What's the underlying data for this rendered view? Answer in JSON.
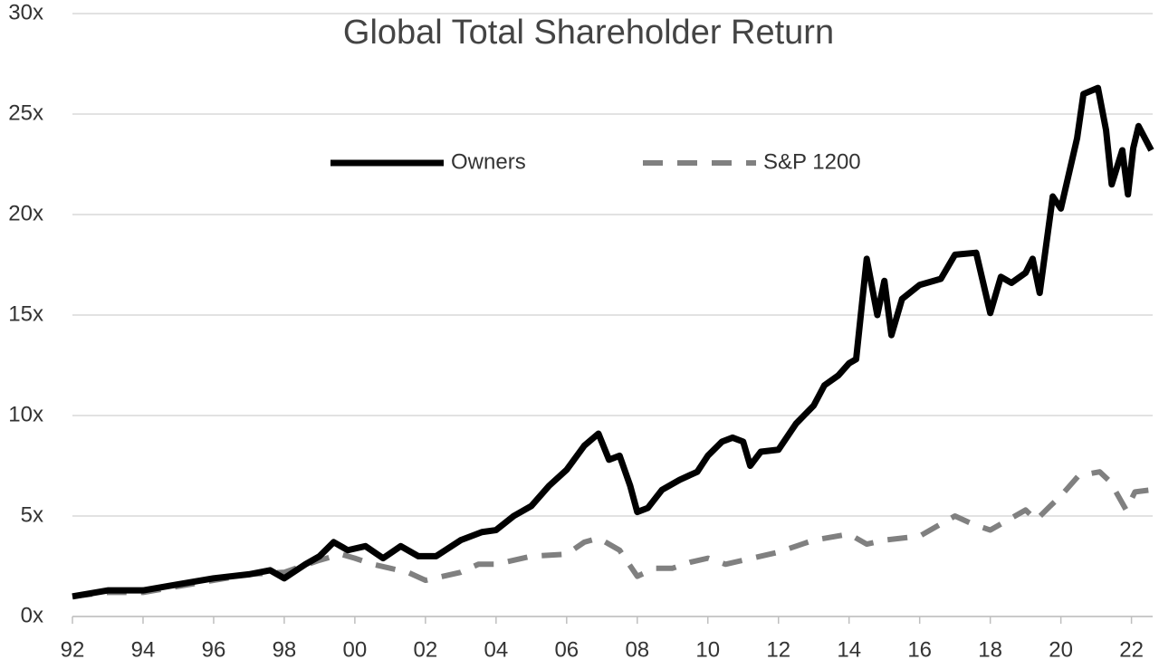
{
  "chart_data": {
    "type": "line",
    "title": "Global Total Shareholder Return",
    "xlim": [
      1992,
      2022.6
    ],
    "xticks": [
      {
        "value": 1992,
        "label": "92"
      },
      {
        "value": 1994,
        "label": "94"
      },
      {
        "value": 1996,
        "label": "96"
      },
      {
        "value": 1998,
        "label": "98"
      },
      {
        "value": 2000,
        "label": "00"
      },
      {
        "value": 2002,
        "label": "02"
      },
      {
        "value": 2004,
        "label": "04"
      },
      {
        "value": 2006,
        "label": "06"
      },
      {
        "value": 2008,
        "label": "08"
      },
      {
        "value": 2010,
        "label": "10"
      },
      {
        "value": 2012,
        "label": "12"
      },
      {
        "value": 2014,
        "label": "14"
      },
      {
        "value": 2016,
        "label": "16"
      },
      {
        "value": 2018,
        "label": "18"
      },
      {
        "value": 2020,
        "label": "20"
      },
      {
        "value": 2022,
        "label": "22"
      }
    ],
    "ylim": [
      0,
      30
    ],
    "yticks": [
      {
        "value": 0,
        "label": "0x"
      },
      {
        "value": 5,
        "label": "5x"
      },
      {
        "value": 10,
        "label": "10x"
      },
      {
        "value": 15,
        "label": "15x"
      },
      {
        "value": 20,
        "label": "20x"
      },
      {
        "value": 25,
        "label": "25x"
      },
      {
        "value": 30,
        "label": "30x"
      }
    ],
    "grid": true,
    "legend": "top",
    "series": [
      {
        "name": "Owners",
        "color": "#000000",
        "style": "solid",
        "x": [
          1992.0,
          1993.0,
          1994.0,
          1995.0,
          1996.0,
          1997.0,
          1997.6,
          1998.0,
          1998.6,
          1999.0,
          1999.4,
          1999.8,
          2000.3,
          2000.8,
          2001.3,
          2001.8,
          2002.3,
          2003.0,
          2003.6,
          2004.0,
          2004.5,
          2005.0,
          2005.5,
          2006.0,
          2006.5,
          2006.9,
          2007.2,
          2007.5,
          2007.8,
          2008.0,
          2008.3,
          2008.7,
          2009.2,
          2009.7,
          2010.0,
          2010.4,
          2010.7,
          2011.0,
          2011.2,
          2011.5,
          2012.0,
          2012.5,
          2013.0,
          2013.3,
          2013.7,
          2014.0,
          2014.2,
          2014.5,
          2014.8,
          2015.0,
          2015.2,
          2015.5,
          2016.0,
          2016.6,
          2017.0,
          2017.6,
          2018.0,
          2018.3,
          2018.6,
          2019.0,
          2019.2,
          2019.4,
          2019.77,
          2020.0,
          2020.46,
          2020.64,
          2021.05,
          2021.28,
          2021.44,
          2021.74,
          2021.9,
          2022.05,
          2022.2,
          2022.56
        ],
        "values": [
          1.0,
          1.3,
          1.3,
          1.6,
          1.9,
          2.1,
          2.3,
          1.9,
          2.6,
          3.0,
          3.7,
          3.3,
          3.5,
          2.9,
          3.5,
          3.0,
          3.0,
          3.8,
          4.2,
          4.3,
          5.0,
          5.5,
          6.5,
          7.3,
          8.5,
          9.1,
          7.8,
          8.0,
          6.5,
          5.2,
          5.4,
          6.3,
          6.8,
          7.2,
          8.0,
          8.7,
          8.9,
          8.7,
          7.5,
          8.2,
          8.3,
          9.6,
          10.5,
          11.5,
          12.0,
          12.6,
          12.8,
          17.8,
          15.0,
          16.7,
          14.0,
          15.8,
          16.5,
          16.8,
          18.0,
          18.1,
          15.1,
          16.9,
          16.6,
          17.1,
          17.8,
          16.1,
          20.9,
          20.3,
          23.8,
          26.0,
          26.3,
          24.2,
          21.5,
          23.2,
          21.0,
          23.3,
          24.4,
          23.2
        ]
      },
      {
        "name": "S&P 1200",
        "color": "#808080",
        "style": "dashed",
        "x": [
          1992.0,
          1993.0,
          1994.0,
          1995.0,
          1996.0,
          1997.0,
          1998.0,
          1998.5,
          1999.0,
          1999.6,
          2000.0,
          2000.5,
          2001.0,
          2001.5,
          2002.0,
          2002.5,
          2003.0,
          2003.5,
          2004.0,
          2005.0,
          2006.0,
          2006.5,
          2006.9,
          2007.5,
          2008.0,
          2008.5,
          2009.0,
          2009.5,
          2010.0,
          2010.5,
          2011.0,
          2012.0,
          2012.5,
          2013.0,
          2014.0,
          2014.5,
          2015.0,
          2016.0,
          2017.0,
          2017.5,
          2018.0,
          2018.5,
          2019.0,
          2019.3,
          2019.7,
          2020.0,
          2020.5,
          2021.1,
          2021.4,
          2021.85,
          2022.1,
          2022.56
        ],
        "values": [
          1.0,
          1.2,
          1.2,
          1.5,
          1.8,
          2.1,
          2.2,
          2.5,
          2.8,
          3.1,
          2.9,
          2.6,
          2.4,
          2.2,
          1.8,
          2.0,
          2.2,
          2.6,
          2.6,
          3.0,
          3.1,
          3.7,
          3.9,
          3.3,
          2.0,
          2.4,
          2.4,
          2.7,
          2.9,
          2.6,
          2.8,
          3.2,
          3.5,
          3.8,
          4.1,
          3.6,
          3.8,
          4.0,
          5.0,
          4.6,
          4.3,
          4.8,
          5.3,
          4.8,
          5.5,
          6.0,
          7.0,
          7.2,
          6.7,
          5.3,
          6.2,
          6.3
        ]
      }
    ]
  }
}
